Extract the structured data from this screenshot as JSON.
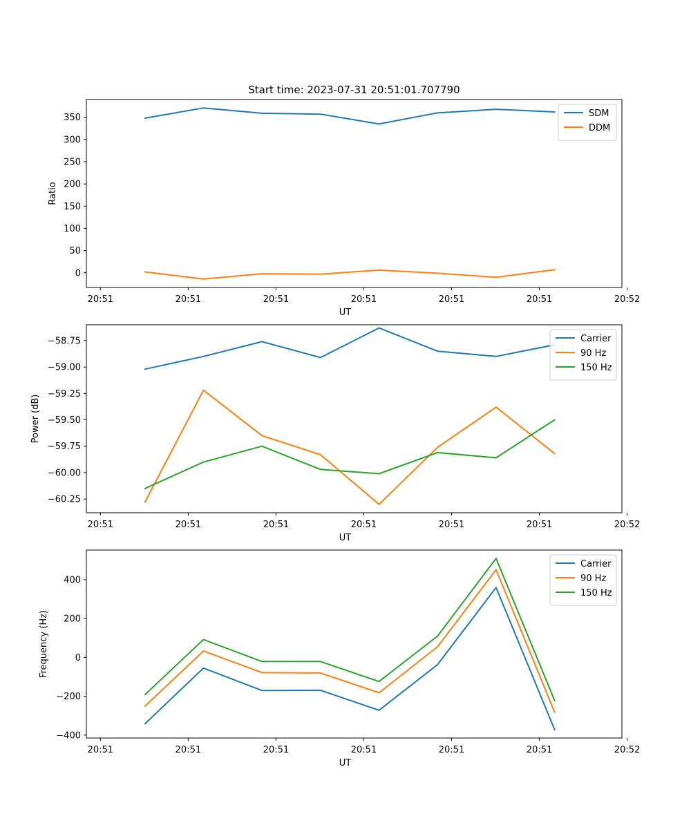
{
  "chart_data": [
    {
      "type": "line",
      "title": "Start time: 2023-07-31 20:51:01.707790",
      "xlabel": "UT",
      "ylabel": "Ratio",
      "x_tick_labels": [
        "20:51",
        "20:51",
        "20:51",
        "20:51",
        "20:51",
        "20:51",
        "20:52"
      ],
      "xlim": [
        -0.24,
        8.91
      ],
      "x": [
        0.76,
        1.76,
        2.76,
        3.76,
        4.76,
        5.76,
        6.76,
        7.76
      ],
      "ylim": [
        -33,
        390
      ],
      "yticks": [
        0,
        50,
        100,
        150,
        200,
        250,
        300,
        350
      ],
      "ytick_labels": [
        "0",
        "50",
        "100",
        "150",
        "200",
        "250",
        "300",
        "350"
      ],
      "legend_position": "top-right",
      "series": [
        {
          "name": "SDM",
          "color": "#1f77b4",
          "values": [
            348,
            371,
            359,
            357,
            335,
            360,
            368,
            362
          ]
        },
        {
          "name": "DDM",
          "color": "#ff7f0e",
          "values": [
            2,
            -14,
            -2,
            -3,
            6,
            -1,
            -10,
            7
          ]
        }
      ]
    },
    {
      "type": "line",
      "title": "",
      "xlabel": "UT",
      "ylabel": "Power (dB)",
      "x_tick_labels": [
        "20:51",
        "20:51",
        "20:51",
        "20:51",
        "20:51",
        "20:51",
        "20:52"
      ],
      "xlim": [
        -0.24,
        8.91
      ],
      "x": [
        0.76,
        1.76,
        2.76,
        3.76,
        4.76,
        5.76,
        6.76,
        7.76
      ],
      "ylim": [
        -60.38,
        -58.6
      ],
      "yticks": [
        -60.25,
        -60.0,
        -59.75,
        -59.5,
        -59.25,
        -59.0,
        -58.75
      ],
      "ytick_labels": [
        "−60.25",
        "−60.00",
        "−59.75",
        "−59.50",
        "−59.25",
        "−59.00",
        "−58.75"
      ],
      "legend_position": "top-right",
      "series": [
        {
          "name": "Carrier",
          "color": "#1f77b4",
          "values": [
            -59.02,
            -58.9,
            -58.76,
            -58.91,
            -58.63,
            -58.85,
            -58.9,
            -58.79
          ]
        },
        {
          "name": "90 Hz",
          "color": "#ff7f0e",
          "values": [
            -60.28,
            -59.22,
            -59.65,
            -59.83,
            -60.3,
            -59.76,
            -59.38,
            -59.82
          ]
        },
        {
          "name": "150 Hz",
          "color": "#2ca02c",
          "values": [
            -60.15,
            -59.9,
            -59.75,
            -59.97,
            -60.01,
            -59.81,
            -59.86,
            -59.5
          ]
        }
      ]
    },
    {
      "type": "line",
      "title": "",
      "xlabel": "UT",
      "ylabel": "Frequency (Hz)",
      "x_tick_labels": [
        "20:51",
        "20:51",
        "20:51",
        "20:51",
        "20:51",
        "20:51",
        "20:52"
      ],
      "xlim": [
        -0.24,
        8.91
      ],
      "x": [
        0.76,
        1.76,
        2.76,
        3.76,
        4.76,
        5.76,
        6.76,
        7.76
      ],
      "ylim": [
        -415,
        553
      ],
      "yticks": [
        -400,
        -200,
        0,
        200,
        400
      ],
      "ytick_labels": [
        "−400",
        "−200",
        "0",
        "200",
        "400"
      ],
      "legend_position": "top-right",
      "series": [
        {
          "name": "Carrier",
          "color": "#1f77b4",
          "values": [
            -342,
            -55,
            -170,
            -169,
            -272,
            -37,
            360,
            -372
          ]
        },
        {
          "name": "90 Hz",
          "color": "#ff7f0e",
          "values": [
            -251,
            33,
            -78,
            -80,
            -182,
            55,
            452,
            -282
          ]
        },
        {
          "name": "150 Hz",
          "color": "#2ca02c",
          "values": [
            -192,
            92,
            -21,
            -21,
            -124,
            110,
            510,
            -222
          ]
        }
      ]
    }
  ]
}
